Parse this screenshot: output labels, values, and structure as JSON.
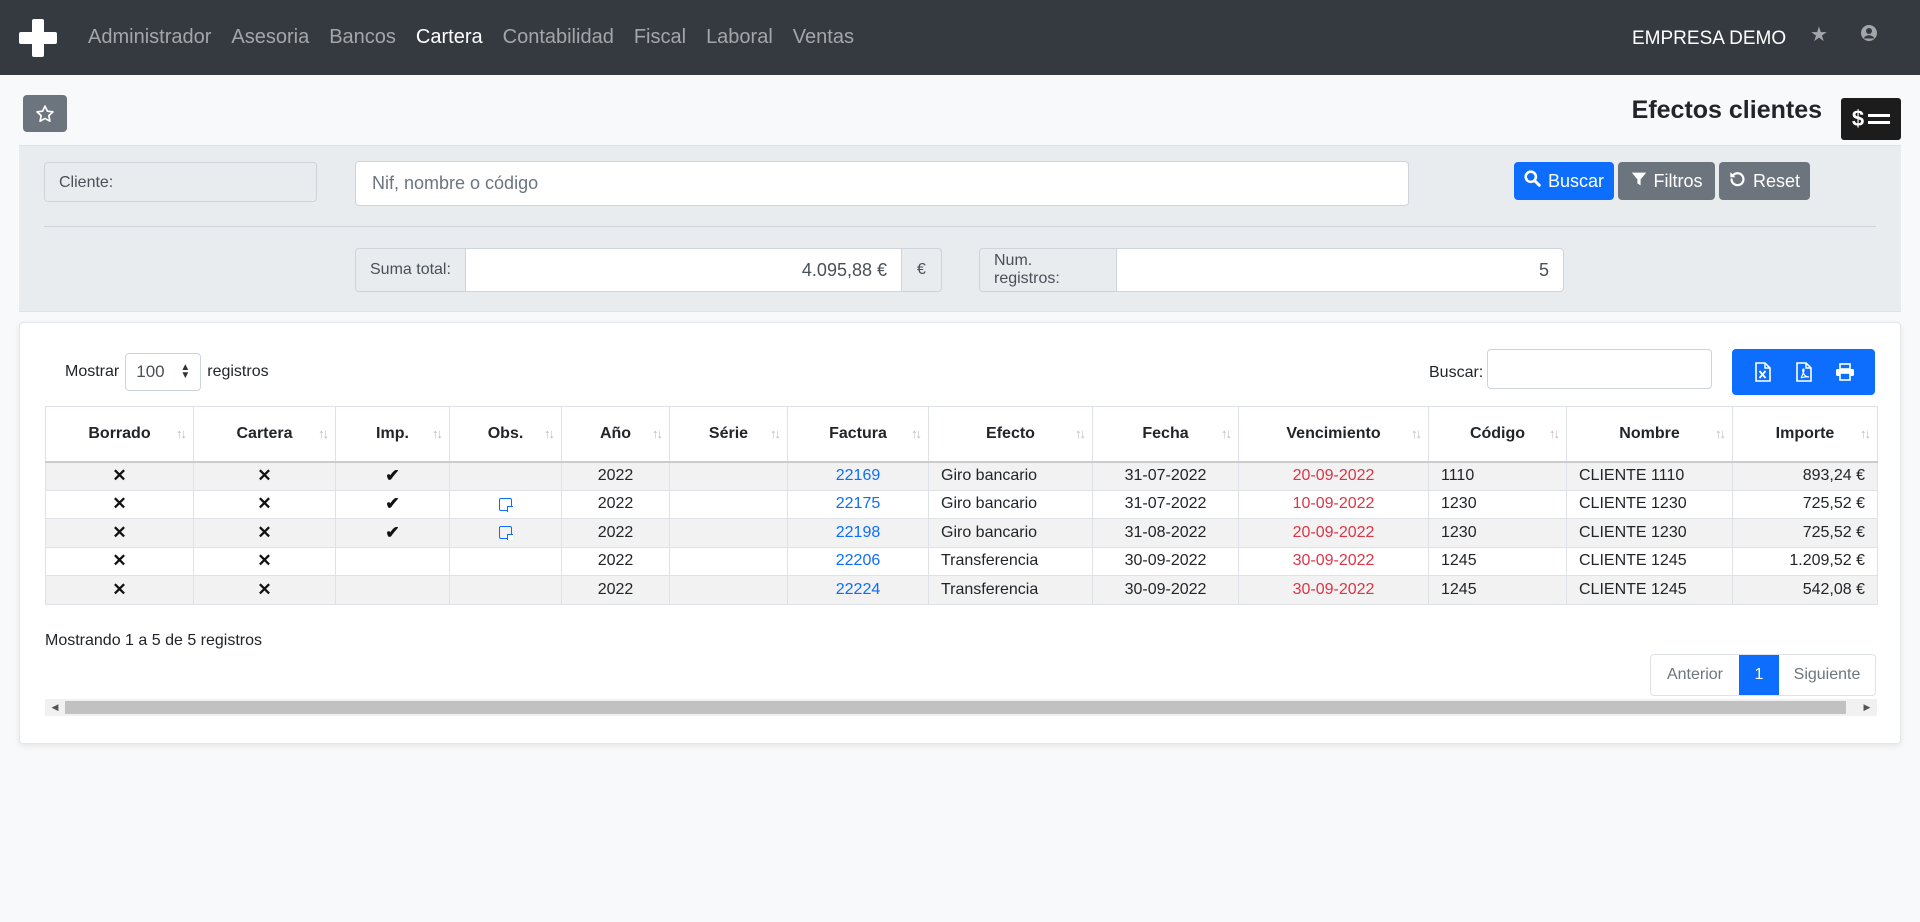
{
  "nav": {
    "brand": "plus-logo",
    "items": [
      "Administrador",
      "Asesoria",
      "Bancos",
      "Cartera",
      "Contabilidad",
      "Fiscal",
      "Laboral",
      "Ventas"
    ],
    "active": "Cartera",
    "company": "EMPRESA DEMO"
  },
  "page": {
    "title": "Efectos clientes",
    "badge_symbol": "$"
  },
  "filters": {
    "cliente_label": "Cliente:",
    "search_placeholder": "Nif, nombre o código",
    "search_value": "",
    "buscar": "Buscar",
    "filtros": "Filtros",
    "reset": "Reset",
    "suma_label": "Suma total:",
    "suma_value": "4.095,88 €",
    "currency": "€",
    "num_label": "Num. registros:",
    "num_value": "5"
  },
  "table_controls": {
    "mostrar": "Mostrar",
    "length_value": "100",
    "registros": "registros",
    "buscar_label": "Buscar:"
  },
  "table": {
    "columns": [
      "Borrado",
      "Cartera",
      "Imp.",
      "Obs.",
      "Año",
      "Série",
      "Factura",
      "Efecto",
      "Fecha",
      "Vencimiento",
      "Código",
      "Nombre",
      "Importe"
    ],
    "rows": [
      {
        "borrado": "✕",
        "cartera": "✕",
        "imp": "✔",
        "obs": false,
        "ano": "2022",
        "serie": "",
        "factura": "22169",
        "efecto": "Giro bancario",
        "fecha": "31-07-2022",
        "vencimiento": "20-09-2022",
        "codigo": "1110",
        "nombre": "CLIENTE 1110",
        "importe": "893,24 €"
      },
      {
        "borrado": "✕",
        "cartera": "✕",
        "imp": "✔",
        "obs": true,
        "ano": "2022",
        "serie": "",
        "factura": "22175",
        "efecto": "Giro bancario",
        "fecha": "31-07-2022",
        "vencimiento": "10-09-2022",
        "codigo": "1230",
        "nombre": "CLIENTE 1230",
        "importe": "725,52 €"
      },
      {
        "borrado": "✕",
        "cartera": "✕",
        "imp": "✔",
        "obs": true,
        "ano": "2022",
        "serie": "",
        "factura": "22198",
        "efecto": "Giro bancario",
        "fecha": "31-08-2022",
        "vencimiento": "20-09-2022",
        "codigo": "1230",
        "nombre": "CLIENTE 1230",
        "importe": "725,52 €"
      },
      {
        "borrado": "✕",
        "cartera": "✕",
        "imp": "",
        "obs": false,
        "ano": "2022",
        "serie": "",
        "factura": "22206",
        "efecto": "Transferencia",
        "fecha": "30-09-2022",
        "vencimiento": "30-09-2022",
        "codigo": "1245",
        "nombre": "CLIENTE 1245",
        "importe": "1.209,52 €"
      },
      {
        "borrado": "✕",
        "cartera": "✕",
        "imp": "",
        "obs": false,
        "ano": "2022",
        "serie": "",
        "factura": "22224",
        "efecto": "Transferencia",
        "fecha": "30-09-2022",
        "vencimiento": "30-09-2022",
        "codigo": "1245",
        "nombre": "CLIENTE 1245",
        "importe": "542,08 €"
      }
    ]
  },
  "footer": {
    "info": "Mostrando 1 a 5 de 5 registros",
    "anterior": "Anterior",
    "page": "1",
    "siguiente": "Siguiente"
  },
  "colors": {
    "navbar": "#343a40",
    "primary": "#0d6efd",
    "secondary": "#6c757d",
    "danger": "#dc3545"
  }
}
